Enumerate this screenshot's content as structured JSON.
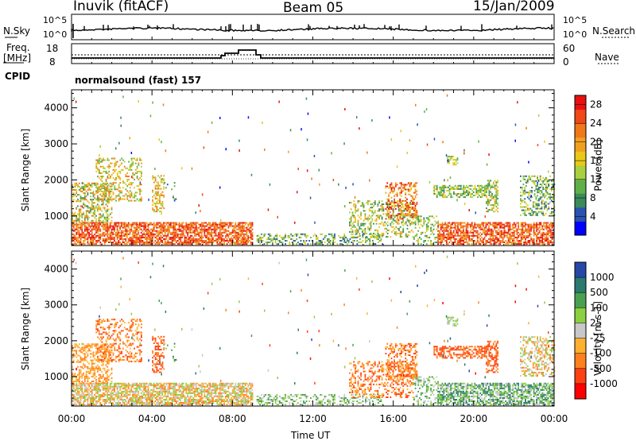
{
  "header": {
    "station": "Inuvik (fitACF)",
    "beam": "Beam 05",
    "date": "15/Jan/2009"
  },
  "panels": {
    "nsky": {
      "left_label": "N.Sky",
      "right_label": "N.Search",
      "left_ticks": [
        "10^5",
        "10^0"
      ],
      "right_ticks": [
        "10^5",
        "10^0"
      ]
    },
    "freq": {
      "left_label_line1": "Freq.",
      "left_label_line2": "[MHz]",
      "left_ticks": [
        "18",
        "8"
      ],
      "right_ticks": [
        "60",
        "0"
      ],
      "right_label": "Nave"
    },
    "cpid": {
      "label": "CPID",
      "value": "normalsound (fast) 157"
    }
  },
  "chart_data": [
    {
      "type": "heatmap",
      "name": "power",
      "ylabel": "Slant Range [km]",
      "xlabel": "",
      "x_ticks": [
        "00:00",
        "04:00",
        "08:00",
        "12:00",
        "16:00",
        "20:00",
        "00:00"
      ],
      "y_ticks": [
        1000,
        2000,
        3000,
        4000
      ],
      "ylim": [
        180,
        4500
      ],
      "colorbar": {
        "label": "Power [dB]",
        "ticks": [
          "4",
          "8",
          "12",
          "16",
          "20",
          "24",
          "28"
        ],
        "range": [
          0,
          30
        ]
      }
    },
    {
      "type": "heatmap",
      "name": "velocity",
      "ylabel": "Slant Range [km]",
      "xlabel": "Time UT",
      "x_ticks": [
        "00:00",
        "04:00",
        "08:00",
        "12:00",
        "16:00",
        "20:00",
        "00:00"
      ],
      "y_ticks": [
        1000,
        2000,
        3000,
        4000
      ],
      "ylim": [
        180,
        4500
      ],
      "colorbar": {
        "label": "Velocity [m s-1]",
        "ticks": [
          "1000",
          "500",
          "100",
          "25",
          "-25",
          "-100",
          "-500",
          "-1000"
        ]
      }
    }
  ],
  "colors": {
    "power": [
      "#0000ff",
      "#2a52b0",
      "#3a8a5a",
      "#5fb048",
      "#a8d040",
      "#e8c818",
      "#f0a020",
      "#f07818",
      "#f04818",
      "#e81010"
    ],
    "velocity": [
      "#ff0000",
      "#ff4010",
      "#ff8020",
      "#ffb030",
      "#c8c8c8",
      "#8ad040",
      "#4aa050",
      "#2a7a70",
      "#2848a8"
    ]
  }
}
